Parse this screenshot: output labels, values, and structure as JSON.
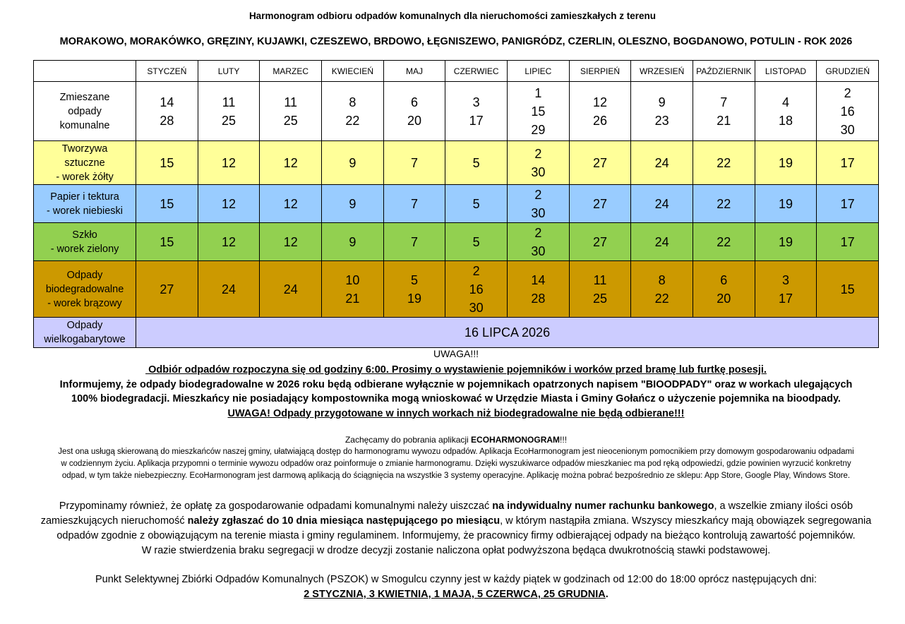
{
  "header": {
    "title": "Harmonogram odbioru odpadów komunalnych dla nieruchomości zamieszkałych z terenu",
    "subtitle": "MORAKOWO, MORAKÓWKO, GRĘZINY, KUJAWKI, CZESZEWO, BRDOWO, ŁĘGNISZEWO, PANIGRÓDZ, CZERLIN, OLESZNO, BOGDANOWO, POTULIN - ROK 2026"
  },
  "months": [
    "STYCZEŃ",
    "LUTY",
    "MARZEC",
    "KWIECIEŃ",
    "MAJ",
    "CZERWIEC",
    "LIPIEC",
    "SIERPIEŃ",
    "WRZESIEŃ",
    "PAŹDZIERNIK",
    "LISTOPAD",
    "GRUDZIEŃ"
  ],
  "rows": {
    "mixed": {
      "label": [
        "Zmieszane",
        "odpady",
        "komunalne"
      ],
      "days": [
        [
          "14",
          "28"
        ],
        [
          "11",
          "25"
        ],
        [
          "11",
          "25"
        ],
        [
          "8",
          "22"
        ],
        [
          "6",
          "20"
        ],
        [
          "3",
          "17"
        ],
        [
          "1",
          "15",
          "29"
        ],
        [
          "12",
          "26"
        ],
        [
          "9",
          "23"
        ],
        [
          "7",
          "21"
        ],
        [
          "4",
          "18"
        ],
        [
          "2",
          "16",
          "30"
        ]
      ]
    },
    "plastic": {
      "label": [
        "Tworzywa",
        "sztuczne",
        "- worek żółty"
      ],
      "days": [
        [
          "15"
        ],
        [
          "12"
        ],
        [
          "12"
        ],
        [
          "9"
        ],
        [
          "7"
        ],
        [
          "5"
        ],
        [
          "2",
          "30"
        ],
        [
          "27"
        ],
        [
          "24"
        ],
        [
          "22"
        ],
        [
          "19"
        ],
        [
          "17"
        ]
      ]
    },
    "paper": {
      "label": [
        "Papier i tektura",
        "- worek niebieski"
      ],
      "days": [
        [
          "15"
        ],
        [
          "12"
        ],
        [
          "12"
        ],
        [
          "9"
        ],
        [
          "7"
        ],
        [
          "5"
        ],
        [
          "2",
          "30"
        ],
        [
          "27"
        ],
        [
          "24"
        ],
        [
          "22"
        ],
        [
          "19"
        ],
        [
          "17"
        ]
      ]
    },
    "glass": {
      "label": [
        "Szkło",
        "- worek zielony"
      ],
      "days": [
        [
          "15"
        ],
        [
          "12"
        ],
        [
          "12"
        ],
        [
          "9"
        ],
        [
          "7"
        ],
        [
          "5"
        ],
        [
          "2",
          "30"
        ],
        [
          "27"
        ],
        [
          "24"
        ],
        [
          "22"
        ],
        [
          "19"
        ],
        [
          "17"
        ]
      ]
    },
    "bio": {
      "label": [
        "Odpady",
        "biodegradowalne",
        "- worek brązowy"
      ],
      "days": [
        [
          "27"
        ],
        [
          "24"
        ],
        [
          "24"
        ],
        [
          "10",
          "21"
        ],
        [
          "5",
          "19"
        ],
        [
          "2",
          "16",
          "30"
        ],
        [
          "14",
          "28"
        ],
        [
          "11",
          "25"
        ],
        [
          "8",
          "22"
        ],
        [
          "6",
          "20"
        ],
        [
          "3",
          "17"
        ],
        [
          "15"
        ]
      ]
    },
    "bulky": {
      "label": [
        "Odpady",
        "wielkogabarytowe"
      ],
      "date": "16 LIPCA 2026"
    }
  },
  "colors": {
    "plastic": "#ffff99",
    "paper": "#99ccff",
    "glass": "#92d050",
    "bio": "#cc9900",
    "bulky": "#ccccff"
  },
  "notice": {
    "uwaga": "UWAGA!!!",
    "line1": " Odbiór odpadów rozpoczyna się od godziny 6:00. Prosimy o wystawienie pojemników i worków przed bramę lub furtkę posesji.",
    "line2": "Informujemy, że odpady biodegradowalne w 2026 roku będą odbierane wyłącznie w pojemnikach opatrzonych napisem \"BIOODPADY\" oraz w workach ulegających",
    "line3": "100% biodegradacji. Mieszkańcy nie posiadający kompostownika mogą wnioskować w Urzędzie Miasta i Gminy Gołańcz o użyczenie pojemnika na bioodpady.",
    "line4": "UWAGA! Odpady przygotowane w innych workach niż biodegradowalne nie będą odbierane!!!"
  },
  "app": {
    "intro": "Zachęcamy do pobrania aplikacji ",
    "name": "ECOHARMONOGRAM",
    "excl": "!!!",
    "line1": "Jest ona usługą skierowaną do mieszkańców naszej gminy, ułatwiającą dostęp do harmonogramu wywozu odpadów. Aplikacja EcoHarmonogram jest nieocenionym pomocnikiem przy domowym gospodarowaniu odpadami",
    "line2": "w codziennym życiu. Aplikacja przypomni o terminie wywozu odpadów oraz poinformuje o zmianie harmonogramu. Dzięki wyszukiwarce odpadów mieszkaniec ma pod ręką odpowiedzi, gdzie powinien wyrzucić konkretny",
    "line3": "odpad, w tym także niebezpieczny. EcoHarmonogram jest darmową aplikacją do ściągnięcia na wszystkie 3 systemy operacyjne. Aplikację można pobrać bezpośrednio ze sklepu: App Store, Google Play, Windows Store."
  },
  "reminder": {
    "a1": "Przypominamy również, że opłatę za gospodarowanie odpadami komunalnymi należy uiszczać ",
    "a2": "na indywidualny numer rachunku bankowego",
    "a3": ", a wszelkie zmiany ilości osób",
    "b1": "zamieszkujących nieruchomość ",
    "b2": "należy zgłaszać do 10 dnia miesiąca następującego po miesiącu",
    "b3": ", w którym nastąpiła zmiana. Wszyscy mieszkańcy mają obowiązek segregowania",
    "c": "odpadów zgodnie z obowiązującym na terenie miasta i gminy regulaminem. Informujemy, że pracownicy firmy odbierającej odpady na bieżąco kontrolują zawartość pojemników.",
    "d": "W razie stwierdzenia braku segregacji w drodze decyzji zostanie naliczona opłat podwyższona będąca dwukrotnością stawki podstawowej."
  },
  "pszok": {
    "line1": "Punkt Selektywnej Zbiórki Odpadów Komunalnych (PSZOK) w Smogulcu czynny jest w każdy piątek w godzinach od 12:00 do 18:00 oprócz następujących dni:",
    "dates": "2 STYCZNIA, 3 KWIETNIA, 1 MAJA, 5 CZERWCA, 25 GRUDNIA",
    "dot": "."
  }
}
